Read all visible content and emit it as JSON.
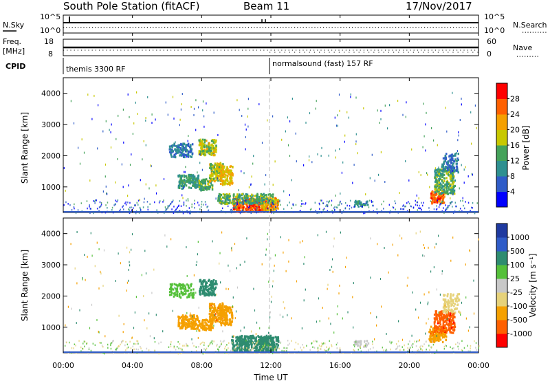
{
  "header": {
    "station": "South Pole Station (fitACF)",
    "beam": "Beam 11",
    "date": "17/Nov/2017"
  },
  "top_panels": {
    "nsky_label": "N.Sky",
    "nsky_ticks": [
      "10^5",
      "10^0"
    ],
    "nsearch_label": "N.Search",
    "nsearch_ticks": [
      "10^5",
      "10^0"
    ],
    "freq_label_1": "Freq.",
    "freq_label_2": "[MHz]",
    "freq_ticks": [
      "18",
      "8"
    ],
    "nave_label": "Nave",
    "nave_ticks": [
      "60",
      "0"
    ],
    "cpid_label": "CPID",
    "cpid_segments": [
      {
        "label": "themis 3300 RF",
        "start_hour": 0,
        "end_hour": 12
      },
      {
        "label": "normalsound (fast) 157 RF",
        "start_hour": 12,
        "end_hour": 24
      }
    ]
  },
  "chart_data": [
    {
      "type": "heatmap",
      "name": "power",
      "ylabel": "Slant Range [km]",
      "ylim": [
        180,
        4500
      ],
      "yticks": [
        "4000",
        "3000",
        "2000",
        "1000"
      ],
      "ytick_values": [
        4000,
        3000,
        2000,
        1000
      ],
      "xlim": [
        0,
        24
      ],
      "colorbar_label": "Power [dB]",
      "colorbar_ticks": [
        "28",
        "24",
        "20",
        "16",
        "12",
        "8",
        "4"
      ],
      "colorbar_values": [
        28,
        24,
        20,
        16,
        12,
        8,
        4
      ],
      "colorbar_range": [
        0,
        32
      ],
      "colorbar_colors": [
        "#0000ff",
        "#2f5cc8",
        "#2e9090",
        "#44a25a",
        "#c8c800",
        "#f5a000",
        "#ff6000",
        "#ff0000"
      ],
      "blobs": [
        {
          "hour": 10.9,
          "range": 450,
          "w_h": 1.1,
          "w_r": 220,
          "value": 27,
          "density": 0.95
        },
        {
          "hour": 11.9,
          "range": 480,
          "w_h": 0.5,
          "w_r": 200,
          "value": 22,
          "density": 0.9
        },
        {
          "hour": 10.5,
          "range": 650,
          "w_h": 1.6,
          "w_r": 160,
          "value": 14,
          "density": 0.7
        },
        {
          "hour": 7.2,
          "range": 1200,
          "w_h": 0.6,
          "w_r": 220,
          "value": 12,
          "density": 0.8
        },
        {
          "hour": 8.2,
          "range": 1100,
          "w_h": 0.4,
          "w_r": 180,
          "value": 14,
          "density": 0.8
        },
        {
          "hour": 8.8,
          "range": 1500,
          "w_h": 0.4,
          "w_r": 300,
          "value": 18,
          "density": 0.8
        },
        {
          "hour": 9.4,
          "range": 1400,
          "w_h": 0.35,
          "w_r": 300,
          "value": 20,
          "density": 0.85
        },
        {
          "hour": 8.3,
          "range": 2300,
          "w_h": 0.5,
          "w_r": 250,
          "value": 17,
          "density": 0.85
        },
        {
          "hour": 6.8,
          "range": 2200,
          "w_h": 0.7,
          "w_r": 220,
          "value": 8,
          "density": 0.6
        },
        {
          "hour": 17.2,
          "range": 500,
          "w_h": 0.4,
          "w_r": 100,
          "value": 10,
          "density": 0.6
        },
        {
          "hour": 21.6,
          "range": 700,
          "w_h": 0.4,
          "w_r": 200,
          "value": 26,
          "density": 0.9
        },
        {
          "hour": 22.0,
          "range": 1200,
          "w_h": 0.6,
          "w_r": 400,
          "value": 14,
          "density": 0.7
        },
        {
          "hour": 22.3,
          "range": 1800,
          "w_h": 0.5,
          "w_r": 300,
          "value": 8,
          "density": 0.5
        }
      ],
      "noise_floor": {
        "range_max": 600,
        "value": 6
      }
    },
    {
      "type": "heatmap",
      "name": "velocity",
      "ylabel": "Slant Range [km]",
      "ylim": [
        180,
        4500
      ],
      "yticks": [
        "4000",
        "3000",
        "2000",
        "1000"
      ],
      "ytick_values": [
        4000,
        3000,
        2000,
        1000
      ],
      "xlim": [
        0,
        24
      ],
      "xlabel": "Time UT",
      "xticks": [
        "00:00",
        "04:00",
        "08:00",
        "12:00",
        "16:00",
        "20:00",
        "00:00"
      ],
      "xtick_values": [
        0,
        4,
        8,
        12,
        16,
        20,
        24
      ],
      "colorbar_label": "Velocity [m s⁻¹]",
      "colorbar_ticks": [
        "1000",
        "500",
        "100",
        "25",
        "-25",
        "-100",
        "-500",
        "-1000"
      ],
      "colorbar_values": [
        1000,
        500,
        100,
        25,
        -25,
        -100,
        -500,
        -1000
      ],
      "colorbar_colors": [
        "#ff0000",
        "#ff6000",
        "#f5a000",
        "#e6d27a",
        "#c8c8c8",
        "#55c03a",
        "#2e8c70",
        "#2f5cc8",
        "#1f3aa0"
      ],
      "blobs": [
        {
          "hour": 10.9,
          "range": 500,
          "w_h": 1.2,
          "w_r": 260,
          "value": 150,
          "density": 0.9
        },
        {
          "hour": 11.9,
          "range": 500,
          "w_h": 0.5,
          "w_r": 220,
          "value": 200,
          "density": 0.85
        },
        {
          "hour": 7.2,
          "range": 1200,
          "w_h": 0.6,
          "w_r": 220,
          "value": -300,
          "density": 0.85
        },
        {
          "hour": 8.2,
          "range": 1100,
          "w_h": 0.4,
          "w_r": 180,
          "value": -300,
          "density": 0.8
        },
        {
          "hour": 8.8,
          "range": 1500,
          "w_h": 0.4,
          "w_r": 300,
          "value": -400,
          "density": 0.8
        },
        {
          "hour": 9.4,
          "range": 1400,
          "w_h": 0.35,
          "w_r": 300,
          "value": -250,
          "density": 0.8
        },
        {
          "hour": 8.3,
          "range": 2300,
          "w_h": 0.5,
          "w_r": 250,
          "value": 300,
          "density": 0.8
        },
        {
          "hour": 6.8,
          "range": 2200,
          "w_h": 0.7,
          "w_r": 220,
          "value": 60,
          "density": 0.5
        },
        {
          "hour": 17.2,
          "range": 500,
          "w_h": 0.4,
          "w_r": 100,
          "value": 10,
          "density": 0.6
        },
        {
          "hour": 21.6,
          "range": 800,
          "w_h": 0.5,
          "w_r": 250,
          "value": -400,
          "density": 0.85
        },
        {
          "hour": 22.0,
          "range": 1200,
          "w_h": 0.6,
          "w_r": 350,
          "value": -800,
          "density": 0.7
        },
        {
          "hour": 22.4,
          "range": 1800,
          "w_h": 0.5,
          "w_r": 300,
          "value": -60,
          "density": 0.5
        }
      ],
      "noise_floor": {
        "range_max": 600,
        "value": 0
      }
    }
  ]
}
